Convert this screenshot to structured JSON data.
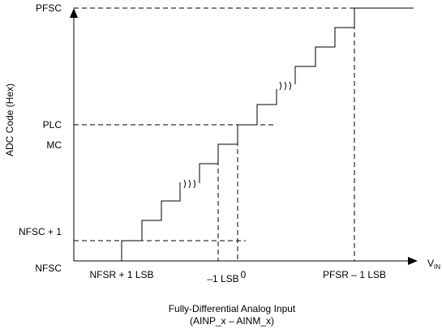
{
  "y_axis_title": "ADC Code (Hex)",
  "y_labels": {
    "pfsc": "PFSC",
    "plc": "PLC",
    "mc": "MC",
    "nfsc_plus_1": "NFSC + 1",
    "nfsc": "NFSC"
  },
  "x_labels": {
    "nfsr_plus_1lsb": "NFSR + 1 LSB",
    "minus_1lsb": "–1 LSB",
    "zero": "0",
    "pfsr_minus_1lsb": "PFSR – 1 LSB"
  },
  "x_axis": {
    "symbol": "V",
    "subscript": "IN"
  },
  "caption": {
    "line1": "Fully-Differential Analog Input",
    "line2": "(AINP_x – AINM_x)"
  }
}
